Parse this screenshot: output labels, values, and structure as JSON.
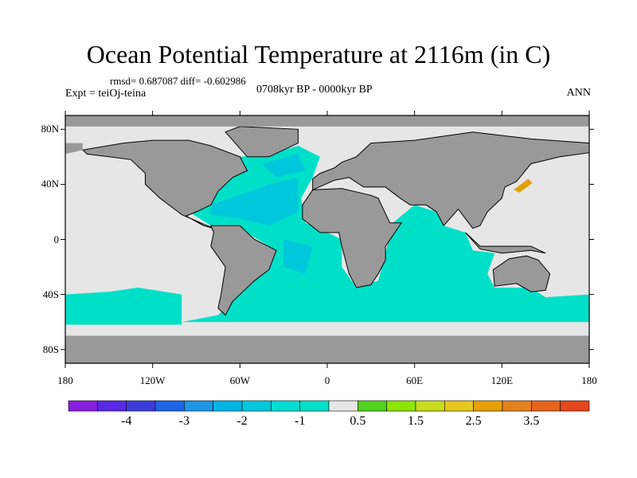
{
  "title": "Ocean Potential Temperature at 2116m (in C)",
  "stats_line": "rmsd= 0.687087 diff= -0.602986",
  "experiment_label": "Expt = teiOj-teina",
  "period_label": "0708kyr BP - 0000kyr BP",
  "season_label": "ANN",
  "colors": {
    "land": "#999999",
    "no_data": "#e6e6e6",
    "cyan_light": "#00e0c8",
    "cyan_mid": "#00c8dc",
    "orange": "#e0a000"
  },
  "map": {
    "projection": "cylindrical equidistant",
    "lat_ticks": [
      "80N",
      "40N",
      "0",
      "40S",
      "80S"
    ],
    "lon_ticks": [
      "180",
      "120W",
      "60W",
      "0",
      "60E",
      "120E",
      "180"
    ]
  },
  "colorbar": {
    "colors": [
      "#8a1ee0",
      "#5a28e6",
      "#3c3cdc",
      "#1e64e6",
      "#1e96e6",
      "#00b4e6",
      "#00c8dc",
      "#00dcd2",
      "#00e0c8",
      "#e6e6e6",
      "#50d21e",
      "#8ce600",
      "#c8dc1e",
      "#e6c81e",
      "#e6a000",
      "#e6821e",
      "#e6641e",
      "#e6461e"
    ],
    "labels": [
      "-4",
      "-3",
      "-2",
      "-1",
      "0.5",
      "1.5",
      "2.5",
      "3.5"
    ]
  }
}
